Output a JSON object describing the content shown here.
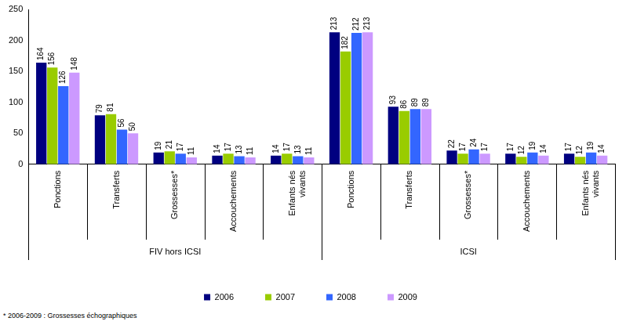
{
  "chart_data": {
    "type": "bar",
    "categories": [
      "Ponctions",
      "Transferts",
      "Grossesses*",
      "Accouchements",
      "Enfants nés vivants",
      "Ponctions",
      "Transferts",
      "Grossesses*",
      "Accouchements",
      "Enfants nés vivants"
    ],
    "category_groups": [
      "FIV hors ICSI",
      "FIV hors ICSI",
      "FIV hors ICSI",
      "FIV hors ICSI",
      "FIV hors ICSI",
      "ICSI",
      "ICSI",
      "ICSI",
      "ICSI",
      "ICSI"
    ],
    "series": [
      {
        "name": "2006",
        "color": "#000080",
        "values": [
          164,
          79,
          19,
          14,
          14,
          213,
          93,
          22,
          17,
          17
        ]
      },
      {
        "name": "2007",
        "color": "#99cc00",
        "values": [
          156,
          81,
          21,
          17,
          17,
          182,
          86,
          17,
          12,
          12
        ]
      },
      {
        "name": "2008",
        "color": "#3366ff",
        "values": [
          126,
          56,
          17,
          13,
          13,
          212,
          89,
          24,
          19,
          19
        ]
      },
      {
        "name": "2009",
        "color": "#cc99ff",
        "values": [
          148,
          50,
          11,
          11,
          11,
          213,
          89,
          17,
          14,
          14
        ]
      }
    ],
    "ylim": [
      0,
      250
    ],
    "yticks": [
      0,
      50,
      100,
      150,
      200,
      250
    ],
    "grid": false,
    "legend": "bottom",
    "data_labels": true,
    "note": "* 2006-2009 : Grossesses échographiques"
  }
}
